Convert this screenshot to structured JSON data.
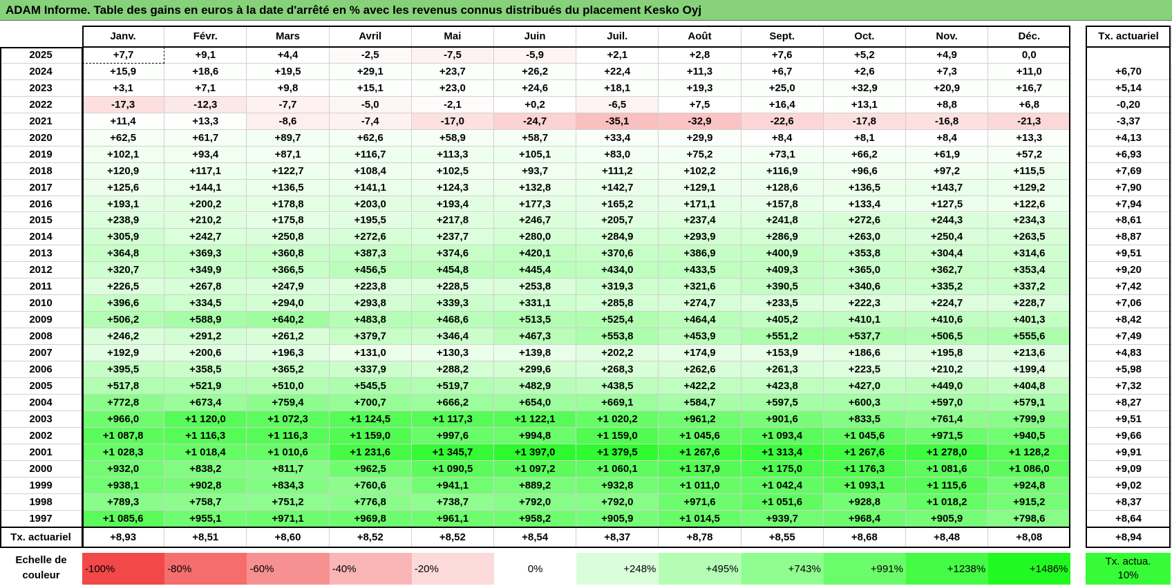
{
  "title": "ADAM Informe. Table des gains en euros à la date d'arrêté en % avec les revenus connus distribués du placement Kesko Oyj",
  "table": {
    "columns": [
      "Janv.",
      "Févr.",
      "Mars",
      "Avril",
      "Mai",
      "Juin",
      "Juil.",
      "Août",
      "Sept.",
      "Oct.",
      "Nov.",
      "Déc."
    ],
    "total_header": "Tx. actuariel",
    "rows": [
      {
        "year": "2025",
        "cells": [
          "+7,7",
          "+9,1",
          "+4,4",
          "-2,5",
          "-7,5",
          "-5,9",
          "+2,1",
          "+2,8",
          "+7,6",
          "+5,2",
          "+4,9",
          "0,0"
        ]
      },
      {
        "year": "2024",
        "cells": [
          "+15,9",
          "+18,6",
          "+19,5",
          "+29,1",
          "+23,7",
          "+26,2",
          "+22,4",
          "+11,3",
          "+6,7",
          "+2,6",
          "+7,3",
          "+11,0"
        ],
        "total": "+6,70"
      },
      {
        "year": "2023",
        "cells": [
          "+3,1",
          "+7,1",
          "+9,8",
          "+15,1",
          "+23,0",
          "+24,6",
          "+18,1",
          "+19,3",
          "+25,0",
          "+32,9",
          "+20,9",
          "+16,7"
        ],
        "total": "+5,14"
      },
      {
        "year": "2022",
        "cells": [
          "-17,3",
          "-12,3",
          "-7,7",
          "-5,0",
          "-2,1",
          "+0,2",
          "-6,5",
          "+7,5",
          "+16,4",
          "+13,1",
          "+8,8",
          "+6,8"
        ],
        "total": "-0,20"
      },
      {
        "year": "2021",
        "cells": [
          "+11,4",
          "+13,3",
          "-8,6",
          "-7,4",
          "-17,0",
          "-24,7",
          "-35,1",
          "-32,9",
          "-22,6",
          "-17,8",
          "-16,8",
          "-21,3"
        ],
        "total": "-3,37"
      },
      {
        "year": "2020",
        "cells": [
          "+62,5",
          "+61,7",
          "+89,7",
          "+62,6",
          "+58,9",
          "+58,7",
          "+33,4",
          "+29,9",
          "+8,4",
          "+8,1",
          "+8,4",
          "+13,3"
        ],
        "total": "+4,13"
      },
      {
        "year": "2019",
        "cells": [
          "+102,1",
          "+93,4",
          "+87,1",
          "+116,7",
          "+113,3",
          "+105,1",
          "+83,0",
          "+75,2",
          "+73,1",
          "+66,2",
          "+61,9",
          "+57,2"
        ],
        "total": "+6,93"
      },
      {
        "year": "2018",
        "cells": [
          "+120,9",
          "+117,1",
          "+122,7",
          "+108,4",
          "+102,5",
          "+93,7",
          "+111,2",
          "+102,2",
          "+116,9",
          "+96,6",
          "+97,2",
          "+115,5"
        ],
        "total": "+7,69"
      },
      {
        "year": "2017",
        "cells": [
          "+125,6",
          "+144,1",
          "+136,5",
          "+141,1",
          "+124,3",
          "+132,8",
          "+142,7",
          "+129,1",
          "+128,6",
          "+136,5",
          "+143,7",
          "+129,2"
        ],
        "total": "+7,90"
      },
      {
        "year": "2016",
        "cells": [
          "+193,1",
          "+200,2",
          "+178,8",
          "+203,0",
          "+193,4",
          "+177,3",
          "+165,2",
          "+171,1",
          "+157,8",
          "+133,4",
          "+127,5",
          "+122,6"
        ],
        "total": "+7,94"
      },
      {
        "year": "2015",
        "cells": [
          "+238,9",
          "+210,2",
          "+175,8",
          "+195,5",
          "+217,8",
          "+246,7",
          "+205,7",
          "+237,4",
          "+241,8",
          "+272,6",
          "+244,3",
          "+234,3"
        ],
        "total": "+8,61"
      },
      {
        "year": "2014",
        "cells": [
          "+305,9",
          "+242,7",
          "+250,8",
          "+272,6",
          "+237,7",
          "+280,0",
          "+284,9",
          "+293,9",
          "+286,9",
          "+263,0",
          "+250,4",
          "+263,5"
        ],
        "total": "+8,87"
      },
      {
        "year": "2013",
        "cells": [
          "+364,8",
          "+369,3",
          "+360,8",
          "+387,3",
          "+374,6",
          "+420,1",
          "+370,6",
          "+386,9",
          "+400,9",
          "+353,8",
          "+304,4",
          "+314,6"
        ],
        "total": "+9,51"
      },
      {
        "year": "2012",
        "cells": [
          "+320,7",
          "+349,9",
          "+366,5",
          "+456,5",
          "+454,8",
          "+445,4",
          "+434,0",
          "+433,5",
          "+409,3",
          "+365,0",
          "+362,7",
          "+353,4"
        ],
        "total": "+9,20"
      },
      {
        "year": "2011",
        "cells": [
          "+226,5",
          "+267,8",
          "+247,9",
          "+223,8",
          "+228,5",
          "+253,8",
          "+319,3",
          "+321,6",
          "+390,5",
          "+340,6",
          "+335,2",
          "+337,2"
        ],
        "total": "+7,42"
      },
      {
        "year": "2010",
        "cells": [
          "+396,6",
          "+334,5",
          "+294,0",
          "+293,8",
          "+339,3",
          "+331,1",
          "+285,8",
          "+274,7",
          "+233,5",
          "+222,3",
          "+224,7",
          "+228,7"
        ],
        "total": "+7,06"
      },
      {
        "year": "2009",
        "cells": [
          "+506,2",
          "+588,9",
          "+640,2",
          "+483,8",
          "+468,6",
          "+513,5",
          "+525,4",
          "+464,4",
          "+405,2",
          "+410,1",
          "+410,6",
          "+401,3"
        ],
        "total": "+8,42"
      },
      {
        "year": "2008",
        "cells": [
          "+246,2",
          "+291,2",
          "+261,2",
          "+379,7",
          "+346,4",
          "+467,3",
          "+553,8",
          "+453,9",
          "+551,2",
          "+537,7",
          "+506,5",
          "+555,6"
        ],
        "total": "+7,49"
      },
      {
        "year": "2007",
        "cells": [
          "+192,9",
          "+200,6",
          "+196,3",
          "+131,0",
          "+130,3",
          "+139,8",
          "+202,2",
          "+174,9",
          "+153,9",
          "+186,6",
          "+195,8",
          "+213,6"
        ],
        "total": "+4,83"
      },
      {
        "year": "2006",
        "cells": [
          "+395,5",
          "+358,5",
          "+365,2",
          "+337,9",
          "+288,2",
          "+299,6",
          "+268,3",
          "+262,6",
          "+261,3",
          "+223,5",
          "+210,2",
          "+199,4"
        ],
        "total": "+5,98"
      },
      {
        "year": "2005",
        "cells": [
          "+517,8",
          "+521,9",
          "+510,0",
          "+545,5",
          "+519,7",
          "+482,9",
          "+438,5",
          "+422,2",
          "+423,8",
          "+427,0",
          "+449,0",
          "+404,8"
        ],
        "total": "+7,32"
      },
      {
        "year": "2004",
        "cells": [
          "+772,8",
          "+673,4",
          "+759,4",
          "+700,7",
          "+666,2",
          "+654,0",
          "+669,1",
          "+584,7",
          "+597,5",
          "+600,3",
          "+597,0",
          "+579,1"
        ],
        "total": "+8,27"
      },
      {
        "year": "2003",
        "cells": [
          "+966,0",
          "+1 120,0",
          "+1 072,3",
          "+1 124,5",
          "+1 117,3",
          "+1 122,1",
          "+1 020,2",
          "+961,2",
          "+901,6",
          "+833,5",
          "+761,4",
          "+799,9"
        ],
        "total": "+9,51"
      },
      {
        "year": "2002",
        "cells": [
          "+1 087,8",
          "+1 116,3",
          "+1 116,3",
          "+1 159,0",
          "+997,6",
          "+994,8",
          "+1 159,0",
          "+1 045,6",
          "+1 093,4",
          "+1 045,6",
          "+971,5",
          "+940,5"
        ],
        "total": "+9,66"
      },
      {
        "year": "2001",
        "cells": [
          "+1 028,3",
          "+1 018,4",
          "+1 010,6",
          "+1 231,6",
          "+1 345,7",
          "+1 397,0",
          "+1 379,5",
          "+1 267,6",
          "+1 313,4",
          "+1 267,6",
          "+1 278,0",
          "+1 128,2"
        ],
        "total": "+9,91"
      },
      {
        "year": "2000",
        "cells": [
          "+932,0",
          "+838,2",
          "+811,7",
          "+962,5",
          "+1 090,5",
          "+1 097,2",
          "+1 060,1",
          "+1 137,9",
          "+1 175,0",
          "+1 176,3",
          "+1 081,6",
          "+1 086,0"
        ],
        "total": "+9,09"
      },
      {
        "year": "1999",
        "cells": [
          "+938,1",
          "+902,8",
          "+834,3",
          "+760,6",
          "+941,1",
          "+889,2",
          "+932,8",
          "+1 011,0",
          "+1 042,4",
          "+1 093,1",
          "+1 115,6",
          "+924,8"
        ],
        "total": "+9,02"
      },
      {
        "year": "1998",
        "cells": [
          "+789,3",
          "+758,7",
          "+751,2",
          "+776,8",
          "+738,7",
          "+792,0",
          "+792,0",
          "+971,6",
          "+1 051,6",
          "+928,8",
          "+1 018,2",
          "+915,2"
        ],
        "total": "+8,37"
      },
      {
        "year": "1997",
        "cells": [
          "+1 085,6",
          "+955,1",
          "+971,1",
          "+969,8",
          "+961,1",
          "+958,2",
          "+905,9",
          "+1 014,5",
          "+939,7",
          "+968,4",
          "+905,9",
          "+798,6"
        ],
        "total": "+8,64"
      }
    ],
    "footer": {
      "label": "Tx. actuariel",
      "cells": [
        "+8,93",
        "+8,51",
        "+8,60",
        "+8,52",
        "+8,52",
        "+8,54",
        "+8,37",
        "+8,78",
        "+8,55",
        "+8,68",
        "+8,48",
        "+8,08"
      ],
      "total": "+8,94"
    }
  },
  "legend": {
    "label": "Echelle de couleur",
    "stops": [
      "-100%",
      "-80%",
      "-60%",
      "-40%",
      "-20%",
      "0%",
      "+248%",
      "+495%",
      "+743%",
      "+991%",
      "+1238%",
      "+1486%"
    ],
    "total_label": "Tx. actua. 10%"
  }
}
